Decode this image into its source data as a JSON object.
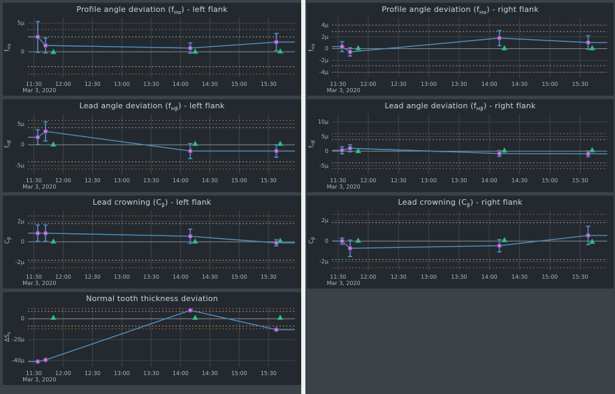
{
  "page": {
    "background": "#3b4348",
    "divider_color": "#edf0ef",
    "date_label": "Mar 3, 2020",
    "x_axis": {
      "domain_minutes": [
        684,
        957
      ],
      "tick_minutes": [
        690,
        720,
        750,
        780,
        810,
        840,
        870,
        900,
        930
      ],
      "tick_labels": [
        "11:30",
        "12:00",
        "12:30",
        "13:00",
        "13:30",
        "14:00",
        "14:30",
        "15:00",
        "15:30"
      ]
    },
    "colors": {
      "card_bg": "#23292e",
      "grid": "#3f464c",
      "zero_line": "#848d94",
      "axis_text": "#a9b5c1",
      "title_text": "#ccd4da",
      "line": "#4f8fc4",
      "error_bar": "#4f8fc4",
      "marker_fill": "#c77fd2",
      "marker_edge": "#6f4496",
      "triangle": "#39bd85",
      "triangle_edge": "#1f8f5f",
      "tolerance_inner": "#aeb286",
      "tolerance_outer": "#b55f3a"
    }
  },
  "chart_data": [
    {
      "id": "profile-left",
      "type": "line",
      "column": "left",
      "title": {
        "pre": "Profile angle deviation (f",
        "sub": "Hα",
        "post": ") - left flank"
      },
      "ylabel": {
        "pre": "f",
        "sub": "Hα"
      },
      "ylim": [
        -4.5,
        6.0
      ],
      "y_ticks": [
        {
          "value": 5,
          "label": "5µ"
        },
        {
          "value": 0,
          "label": "0"
        }
      ],
      "tolerance": {
        "inner": 2.6,
        "outer": 3.9
      },
      "series": [
        {
          "name": "measurement",
          "marker": "circle",
          "extend_to_edges": true,
          "points": [
            {
              "t": 694,
              "value": 2.6,
              "error": 2.7
            },
            {
              "t": 702,
              "value": 1.1,
              "error": 1.3
            },
            {
              "t": 850,
              "value": 0.65,
              "error": 0.9
            },
            {
              "t": 938,
              "value": 1.7,
              "error": 1.5
            }
          ]
        },
        {
          "name": "reference",
          "marker": "triangle",
          "points": [
            {
              "t": 710,
              "value": 0.0
            },
            {
              "t": 855,
              "value": 0.05
            },
            {
              "t": 942,
              "value": 0.1
            }
          ]
        }
      ]
    },
    {
      "id": "lead-angle-left",
      "type": "line",
      "column": "left",
      "title": {
        "pre": "Lead angle deviation (f",
        "sub": "Hβ",
        "post": ") - left flank"
      },
      "ylabel": {
        "pre": "f",
        "sub": "Hβ"
      },
      "ylim": [
        -7.0,
        7.4
      ],
      "y_ticks": [
        {
          "value": 5,
          "label": "5µ"
        },
        {
          "value": 0,
          "label": "0"
        },
        {
          "value": -5,
          "label": "-5µ"
        }
      ],
      "tolerance": {
        "inner": 4.1,
        "outer": 5.8
      },
      "series": [
        {
          "name": "measurement",
          "marker": "circle",
          "extend_to_edges": true,
          "points": [
            {
              "t": 694,
              "value": 1.8,
              "error": 1.8
            },
            {
              "t": 702,
              "value": 3.2,
              "error": 2.3
            },
            {
              "t": 850,
              "value": -1.5,
              "error": 1.8
            },
            {
              "t": 938,
              "value": -1.5,
              "error": 1.5
            }
          ]
        },
        {
          "name": "reference",
          "marker": "triangle",
          "points": [
            {
              "t": 710,
              "value": 0.1
            },
            {
              "t": 855,
              "value": 0.25
            },
            {
              "t": 942,
              "value": 0.25
            }
          ]
        }
      ]
    },
    {
      "id": "lead-crowning-left",
      "type": "line",
      "column": "left",
      "title": {
        "pre": "Lead crowning (C",
        "sub": "β",
        "post": ") - left flank"
      },
      "ylabel": {
        "pre": "C",
        "sub": "β"
      },
      "ylim": [
        -2.8,
        3.1
      ],
      "y_ticks": [
        {
          "value": 2,
          "label": "2µ"
        },
        {
          "value": 0,
          "label": "0"
        },
        {
          "value": -2,
          "label": "-2µ"
        }
      ],
      "tolerance": {
        "inner": 1.8,
        "outer": 2.55
      },
      "series": [
        {
          "name": "measurement",
          "marker": "circle",
          "extend_to_edges": true,
          "points": [
            {
              "t": 694,
              "value": 0.85,
              "error": 0.8
            },
            {
              "t": 702,
              "value": 0.85,
              "error": 0.8
            },
            {
              "t": 850,
              "value": 0.55,
              "error": 0.7
            },
            {
              "t": 938,
              "value": -0.1,
              "error": 0.3
            }
          ]
        },
        {
          "name": "reference",
          "marker": "triangle",
          "points": [
            {
              "t": 710,
              "value": 0.05
            },
            {
              "t": 855,
              "value": 0.05
            },
            {
              "t": 942,
              "value": 0.1
            }
          ]
        }
      ]
    },
    {
      "id": "tooth-thickness",
      "type": "line",
      "column": "left",
      "title": {
        "pre": "Normal tooth thickness deviation",
        "sub": "",
        "post": ""
      },
      "ylabel": {
        "pre": "ΔS",
        "sub": "n"
      },
      "ylim": [
        -46,
        11.5
      ],
      "y_ticks": [
        {
          "value": 0,
          "label": "0"
        },
        {
          "value": -20,
          "label": "-20µ"
        },
        {
          "value": -40,
          "label": "-40µ"
        }
      ],
      "tolerance": {
        "inner": 7.0,
        "outer": 9.7
      },
      "series": [
        {
          "name": "measurement",
          "marker": "circle",
          "extend_to_edges": true,
          "points": [
            {
              "t": 694,
              "value": -41,
              "error": 0
            },
            {
              "t": 702,
              "value": -39.5,
              "error": 0
            },
            {
              "t": 850,
              "value": 8,
              "error": 0
            },
            {
              "t": 938,
              "value": -10.5,
              "error": 0
            }
          ]
        },
        {
          "name": "reference",
          "marker": "triangle",
          "points": [
            {
              "t": 710,
              "value": 1
            },
            {
              "t": 855,
              "value": 1
            },
            {
              "t": 942,
              "value": 1
            }
          ]
        }
      ]
    },
    {
      "id": "profile-right",
      "type": "line",
      "column": "right",
      "title": {
        "pre": "Profile angle deviation (f",
        "sub": "Hα",
        "post": ") - right flank"
      },
      "ylabel": {
        "pre": "f",
        "sub": "Hα"
      },
      "ylim": [
        -4.9,
        5.3
      ],
      "y_ticks": [
        {
          "value": 4,
          "label": "4µ"
        },
        {
          "value": 2,
          "label": "2µ"
        },
        {
          "value": 0,
          "label": "0"
        },
        {
          "value": -2,
          "label": "-2µ"
        },
        {
          "value": -4,
          "label": "-4µ"
        }
      ],
      "tolerance": {
        "inner": 2.9,
        "outer": 4.0
      },
      "series": [
        {
          "name": "measurement",
          "marker": "circle",
          "extend_to_edges": true,
          "points": [
            {
              "t": 694,
              "value": 0.35,
              "error": 0.85
            },
            {
              "t": 702,
              "value": -0.55,
              "error": 0.7
            },
            {
              "t": 850,
              "value": 1.8,
              "error": 1.3
            },
            {
              "t": 938,
              "value": 1.05,
              "error": 1.15
            }
          ]
        },
        {
          "name": "reference",
          "marker": "triangle",
          "points": [
            {
              "t": 710,
              "value": 0.1
            },
            {
              "t": 855,
              "value": 0.1
            },
            {
              "t": 942,
              "value": 0.1
            }
          ]
        }
      ]
    },
    {
      "id": "lead-angle-right",
      "type": "line",
      "column": "right",
      "title": {
        "pre": "Lead angle deviation (f",
        "sub": "Hβ",
        "post": ") - right flank"
      },
      "ylabel": {
        "pre": "f",
        "sub": "Hβ"
      },
      "ylim": [
        -7.8,
        12.8
      ],
      "y_ticks": [
        {
          "value": 10,
          "label": "10µ"
        },
        {
          "value": 5,
          "label": "5µ"
        },
        {
          "value": 0,
          "label": "0"
        },
        {
          "value": -5,
          "label": "-5µ"
        }
      ],
      "tolerance": {
        "inner": 4.0,
        "outer": 6.0
      },
      "series": [
        {
          "name": "measurement",
          "marker": "circle",
          "extend_to_edges": true,
          "points": [
            {
              "t": 694,
              "value": 0.3,
              "error": 1.2
            },
            {
              "t": 702,
              "value": 1.0,
              "error": 1.2
            },
            {
              "t": 850,
              "value": -0.8,
              "error": 1.0
            },
            {
              "t": 938,
              "value": -0.9,
              "error": 1.0
            }
          ]
        },
        {
          "name": "reference",
          "marker": "triangle",
          "points": [
            {
              "t": 710,
              "value": 0.1
            },
            {
              "t": 855,
              "value": 0.3
            },
            {
              "t": 942,
              "value": 0.4
            }
          ]
        }
      ]
    },
    {
      "id": "lead-crowning-right",
      "type": "line",
      "column": "right",
      "title": {
        "pre": "Lead crowning (C",
        "sub": "β",
        "post": ") - right flank"
      },
      "ylabel": {
        "pre": "C",
        "sub": "β"
      },
      "ylim": [
        -2.85,
        3.0
      ],
      "y_ticks": [
        {
          "value": 2,
          "label": "2µ"
        },
        {
          "value": 0,
          "label": "0"
        },
        {
          "value": -2,
          "label": "-2µ"
        }
      ],
      "tolerance": {
        "inner": 1.8,
        "outer": 2.6
      },
      "series": [
        {
          "name": "measurement",
          "marker": "circle",
          "extend_to_edges": true,
          "points": [
            {
              "t": 694,
              "value": 0.0,
              "error": 0.3
            },
            {
              "t": 702,
              "value": -0.7,
              "error": 0.8
            },
            {
              "t": 850,
              "value": -0.45,
              "error": 0.6
            },
            {
              "t": 938,
              "value": 0.55,
              "error": 0.9
            }
          ]
        },
        {
          "name": "reference",
          "marker": "triangle",
          "points": [
            {
              "t": 710,
              "value": 0.05
            },
            {
              "t": 855,
              "value": 0.1
            },
            {
              "t": 942,
              "value": -0.05
            }
          ]
        }
      ]
    }
  ]
}
